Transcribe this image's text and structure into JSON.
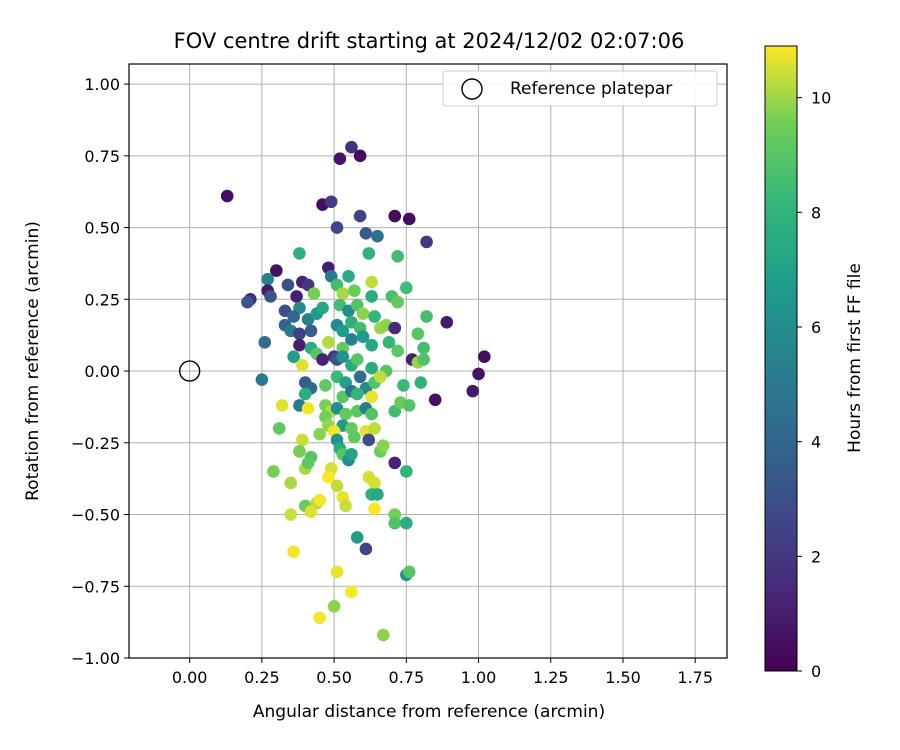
{
  "chart_data": {
    "type": "scatter",
    "title": "FOV centre drift starting at 2024/12/02 02:07:06",
    "xlabel": "Angular distance from reference (arcmin)",
    "ylabel": "Rotation from reference (arcmin)",
    "xlim": [
      -0.21,
      1.86
    ],
    "ylim": [
      -1.0,
      1.07
    ],
    "xticks": [
      0.0,
      0.25,
      0.5,
      0.75,
      1.0,
      1.25,
      1.5,
      1.75
    ],
    "xtick_labels": [
      "0.00",
      "0.25",
      "0.50",
      "0.75",
      "1.00",
      "1.25",
      "1.50",
      "1.75"
    ],
    "yticks": [
      -1.0,
      -0.75,
      -0.5,
      -0.25,
      0.0,
      0.25,
      0.5,
      0.75,
      1.0
    ],
    "ytick_labels": [
      "−1.00",
      "−0.75",
      "−0.50",
      "−0.25",
      "0.00",
      "0.25",
      "0.50",
      "0.75",
      "1.00"
    ],
    "grid": true,
    "legend": {
      "label": "Reference platepar",
      "placement": "upper-right"
    },
    "reference_point": {
      "x": 0.0,
      "y": 0.0
    },
    "colorbar": {
      "label": "Hours from first FF file",
      "colormap": "viridis",
      "range": [
        0,
        10.9
      ],
      "ticks": [
        0,
        2,
        4,
        6,
        8,
        10
      ],
      "tick_labels": [
        "0",
        "2",
        "4",
        "6",
        "8",
        "10"
      ]
    },
    "points": [
      {
        "x": 0.13,
        "y": 0.61,
        "h": 0.5
      },
      {
        "x": 0.52,
        "y": 0.74,
        "h": 0.6
      },
      {
        "x": 0.56,
        "y": 0.78,
        "h": 1.8
      },
      {
        "x": 0.59,
        "y": 0.75,
        "h": 0.4
      },
      {
        "x": 0.46,
        "y": 0.58,
        "h": 0.5
      },
      {
        "x": 0.49,
        "y": 0.59,
        "h": 2.2
      },
      {
        "x": 0.51,
        "y": 0.5,
        "h": 2.6
      },
      {
        "x": 0.59,
        "y": 0.54,
        "h": 2.5
      },
      {
        "x": 0.71,
        "y": 0.54,
        "h": 0.3
      },
      {
        "x": 0.76,
        "y": 0.53,
        "h": 0.4
      },
      {
        "x": 0.61,
        "y": 0.48,
        "h": 3.5
      },
      {
        "x": 0.65,
        "y": 0.47,
        "h": 4.5
      },
      {
        "x": 0.82,
        "y": 0.45,
        "h": 2.0
      },
      {
        "x": 0.38,
        "y": 0.41,
        "h": 7.8
      },
      {
        "x": 0.62,
        "y": 0.41,
        "h": 7.9
      },
      {
        "x": 0.72,
        "y": 0.4,
        "h": 8.5
      },
      {
        "x": 0.48,
        "y": 0.36,
        "h": 1.0
      },
      {
        "x": 0.3,
        "y": 0.35,
        "h": 0.6
      },
      {
        "x": 0.27,
        "y": 0.32,
        "h": 5.5
      },
      {
        "x": 0.34,
        "y": 0.3,
        "h": 3.0
      },
      {
        "x": 0.39,
        "y": 0.31,
        "h": 1.2
      },
      {
        "x": 0.41,
        "y": 0.3,
        "h": 2.0
      },
      {
        "x": 0.49,
        "y": 0.33,
        "h": 5.0
      },
      {
        "x": 0.55,
        "y": 0.33,
        "h": 7.5
      },
      {
        "x": 0.51,
        "y": 0.3,
        "h": 8.5
      },
      {
        "x": 0.63,
        "y": 0.31,
        "h": 10.3
      },
      {
        "x": 0.27,
        "y": 0.28,
        "h": 0.8
      },
      {
        "x": 0.28,
        "y": 0.26,
        "h": 3.2
      },
      {
        "x": 0.21,
        "y": 0.25,
        "h": 1.4
      },
      {
        "x": 0.2,
        "y": 0.24,
        "h": 3.3
      },
      {
        "x": 0.37,
        "y": 0.26,
        "h": 1.1
      },
      {
        "x": 0.38,
        "y": 0.22,
        "h": 6.0
      },
      {
        "x": 0.43,
        "y": 0.27,
        "h": 9.6
      },
      {
        "x": 0.53,
        "y": 0.27,
        "h": 10.1
      },
      {
        "x": 0.57,
        "y": 0.28,
        "h": 9.4
      },
      {
        "x": 0.63,
        "y": 0.26,
        "h": 7.5
      },
      {
        "x": 0.7,
        "y": 0.26,
        "h": 8.7
      },
      {
        "x": 0.72,
        "y": 0.24,
        "h": 9.3
      },
      {
        "x": 0.75,
        "y": 0.29,
        "h": 8.4
      },
      {
        "x": 0.33,
        "y": 0.21,
        "h": 2.9
      },
      {
        "x": 0.36,
        "y": 0.19,
        "h": 4.0
      },
      {
        "x": 0.41,
        "y": 0.18,
        "h": 5.3
      },
      {
        "x": 0.44,
        "y": 0.2,
        "h": 6.5
      },
      {
        "x": 0.46,
        "y": 0.22,
        "h": 7.3
      },
      {
        "x": 0.52,
        "y": 0.23,
        "h": 8.5
      },
      {
        "x": 0.55,
        "y": 0.21,
        "h": 6.0
      },
      {
        "x": 0.58,
        "y": 0.23,
        "h": 8.9
      },
      {
        "x": 0.6,
        "y": 0.2,
        "h": 9.8
      },
      {
        "x": 0.64,
        "y": 0.19,
        "h": 8.0
      },
      {
        "x": 0.82,
        "y": 0.19,
        "h": 8.6
      },
      {
        "x": 0.89,
        "y": 0.17,
        "h": 0.9
      },
      {
        "x": 0.33,
        "y": 0.16,
        "h": 3.8
      },
      {
        "x": 0.35,
        "y": 0.14,
        "h": 5.0
      },
      {
        "x": 0.38,
        "y": 0.13,
        "h": 2.4
      },
      {
        "x": 0.42,
        "y": 0.14,
        "h": 3.6
      },
      {
        "x": 0.51,
        "y": 0.16,
        "h": 5.8
      },
      {
        "x": 0.53,
        "y": 0.14,
        "h": 6.8
      },
      {
        "x": 0.56,
        "y": 0.17,
        "h": 7.8
      },
      {
        "x": 0.59,
        "y": 0.15,
        "h": 8.5
      },
      {
        "x": 0.66,
        "y": 0.15,
        "h": 10.0
      },
      {
        "x": 0.68,
        "y": 0.16,
        "h": 9.8
      },
      {
        "x": 0.71,
        "y": 0.15,
        "h": 1.5
      },
      {
        "x": 0.79,
        "y": 0.13,
        "h": 9.0
      },
      {
        "x": 0.26,
        "y": 0.1,
        "h": 4.3
      },
      {
        "x": 0.38,
        "y": 0.09,
        "h": 1.0
      },
      {
        "x": 0.42,
        "y": 0.08,
        "h": 7.5
      },
      {
        "x": 0.44,
        "y": 0.06,
        "h": 9.0
      },
      {
        "x": 0.48,
        "y": 0.1,
        "h": 10.2
      },
      {
        "x": 0.53,
        "y": 0.08,
        "h": 9.3
      },
      {
        "x": 0.56,
        "y": 0.11,
        "h": 5.4
      },
      {
        "x": 0.6,
        "y": 0.12,
        "h": 6.6
      },
      {
        "x": 0.63,
        "y": 0.09,
        "h": 7.3
      },
      {
        "x": 0.69,
        "y": 0.1,
        "h": 8.1
      },
      {
        "x": 0.72,
        "y": 0.07,
        "h": 9.1
      },
      {
        "x": 0.81,
        "y": 0.08,
        "h": 8.6
      },
      {
        "x": 0.36,
        "y": 0.05,
        "h": 6.9
      },
      {
        "x": 0.46,
        "y": 0.04,
        "h": 1.2
      },
      {
        "x": 0.5,
        "y": 0.05,
        "h": 1.8
      },
      {
        "x": 0.51,
        "y": 0.04,
        "h": 3.3
      },
      {
        "x": 0.53,
        "y": 0.05,
        "h": 6.3
      },
      {
        "x": 0.56,
        "y": 0.02,
        "h": 7.4
      },
      {
        "x": 0.58,
        "y": 0.04,
        "h": 9.0
      },
      {
        "x": 0.77,
        "y": 0.04,
        "h": 1.0
      },
      {
        "x": 0.79,
        "y": 0.03,
        "h": 9.9
      },
      {
        "x": 0.81,
        "y": 0.04,
        "h": 8.8
      },
      {
        "x": 1.02,
        "y": 0.05,
        "h": 0.5
      },
      {
        "x": 0.39,
        "y": 0.02,
        "h": 10.6
      },
      {
        "x": 0.63,
        "y": 0.01,
        "h": 7.5
      },
      {
        "x": 0.68,
        "y": 0.0,
        "h": 9.0
      },
      {
        "x": 1.0,
        "y": -0.01,
        "h": 0.6
      },
      {
        "x": 0.25,
        "y": -0.03,
        "h": 5.0
      },
      {
        "x": 0.4,
        "y": -0.04,
        "h": 3.5
      },
      {
        "x": 0.42,
        "y": -0.06,
        "h": 4.1
      },
      {
        "x": 0.47,
        "y": -0.05,
        "h": 9.2
      },
      {
        "x": 0.51,
        "y": -0.02,
        "h": 8.3
      },
      {
        "x": 0.54,
        "y": -0.04,
        "h": 7.0
      },
      {
        "x": 0.59,
        "y": -0.02,
        "h": 4.4
      },
      {
        "x": 0.61,
        "y": -0.06,
        "h": 6.0
      },
      {
        "x": 0.64,
        "y": -0.04,
        "h": 8.8
      },
      {
        "x": 0.66,
        "y": -0.02,
        "h": 10.3
      },
      {
        "x": 0.74,
        "y": -0.05,
        "h": 8.3
      },
      {
        "x": 0.8,
        "y": -0.04,
        "h": 7.9
      },
      {
        "x": 0.98,
        "y": -0.07,
        "h": 0.8
      },
      {
        "x": 0.4,
        "y": -0.08,
        "h": 7.7
      },
      {
        "x": 0.53,
        "y": -0.09,
        "h": 9.0
      },
      {
        "x": 0.56,
        "y": -0.07,
        "h": 4.4
      },
      {
        "x": 0.58,
        "y": -0.08,
        "h": 8.0
      },
      {
        "x": 0.63,
        "y": -0.09,
        "h": 10.7
      },
      {
        "x": 0.85,
        "y": -0.1,
        "h": 0.6
      },
      {
        "x": 0.32,
        "y": -0.12,
        "h": 10.6
      },
      {
        "x": 0.38,
        "y": -0.12,
        "h": 5.0
      },
      {
        "x": 0.41,
        "y": -0.13,
        "h": 10.8
      },
      {
        "x": 0.47,
        "y": -0.12,
        "h": 9.6
      },
      {
        "x": 0.49,
        "y": -0.14,
        "h": 10.2
      },
      {
        "x": 0.51,
        "y": -0.13,
        "h": 6.2
      },
      {
        "x": 0.54,
        "y": -0.15,
        "h": 9.3
      },
      {
        "x": 0.58,
        "y": -0.14,
        "h": 9.0
      },
      {
        "x": 0.61,
        "y": -0.13,
        "h": 5.3
      },
      {
        "x": 0.63,
        "y": -0.15,
        "h": 8.9
      },
      {
        "x": 0.71,
        "y": -0.14,
        "h": 8.5
      },
      {
        "x": 0.73,
        "y": -0.11,
        "h": 9.4
      },
      {
        "x": 0.76,
        "y": -0.12,
        "h": 8.9
      },
      {
        "x": 0.47,
        "y": -0.16,
        "h": 9.5
      },
      {
        "x": 0.31,
        "y": -0.2,
        "h": 9.2
      },
      {
        "x": 0.48,
        "y": -0.19,
        "h": 9.9
      },
      {
        "x": 0.53,
        "y": -0.19,
        "h": 6.6
      },
      {
        "x": 0.56,
        "y": -0.2,
        "h": 9.3
      },
      {
        "x": 0.61,
        "y": -0.21,
        "h": 10.6
      },
      {
        "x": 0.64,
        "y": -0.2,
        "h": 10.3
      },
      {
        "x": 0.39,
        "y": -0.24,
        "h": 10.4
      },
      {
        "x": 0.45,
        "y": -0.22,
        "h": 9.8
      },
      {
        "x": 0.5,
        "y": -0.21,
        "h": 10.8
      },
      {
        "x": 0.51,
        "y": -0.24,
        "h": 6.2
      },
      {
        "x": 0.57,
        "y": -0.23,
        "h": 9.1
      },
      {
        "x": 0.62,
        "y": -0.24,
        "h": 2.8
      },
      {
        "x": 0.52,
        "y": -0.27,
        "h": 7.5
      },
      {
        "x": 0.53,
        "y": -0.29,
        "h": 9.0
      },
      {
        "x": 0.38,
        "y": -0.28,
        "h": 9.6
      },
      {
        "x": 0.55,
        "y": -0.31,
        "h": 6.0
      },
      {
        "x": 0.56,
        "y": -0.29,
        "h": 7.2
      },
      {
        "x": 0.42,
        "y": -0.3,
        "h": 9.0
      },
      {
        "x": 0.66,
        "y": -0.28,
        "h": 9.5
      },
      {
        "x": 0.67,
        "y": -0.26,
        "h": 9.8
      },
      {
        "x": 0.29,
        "y": -0.35,
        "h": 9.6
      },
      {
        "x": 0.4,
        "y": -0.34,
        "h": 10.1
      },
      {
        "x": 0.41,
        "y": -0.32,
        "h": 9.2
      },
      {
        "x": 0.49,
        "y": -0.34,
        "h": 10.5
      },
      {
        "x": 0.48,
        "y": -0.37,
        "h": 10.9
      },
      {
        "x": 0.62,
        "y": -0.37,
        "h": 10.5
      },
      {
        "x": 0.71,
        "y": -0.32,
        "h": 1.2
      },
      {
        "x": 0.75,
        "y": -0.35,
        "h": 8.0
      },
      {
        "x": 0.35,
        "y": -0.39,
        "h": 10.1
      },
      {
        "x": 0.51,
        "y": -0.4,
        "h": 10.3
      },
      {
        "x": 0.64,
        "y": -0.39,
        "h": 10.5
      },
      {
        "x": 0.63,
        "y": -0.43,
        "h": 7.8
      },
      {
        "x": 0.65,
        "y": -0.43,
        "h": 7.4
      },
      {
        "x": 0.53,
        "y": -0.44,
        "h": 10.7
      },
      {
        "x": 0.4,
        "y": -0.47,
        "h": 9.4
      },
      {
        "x": 0.44,
        "y": -0.46,
        "h": 10.2
      },
      {
        "x": 0.45,
        "y": -0.45,
        "h": 10.8
      },
      {
        "x": 0.54,
        "y": -0.47,
        "h": 10.4
      },
      {
        "x": 0.64,
        "y": -0.48,
        "h": 10.9
      },
      {
        "x": 0.42,
        "y": -0.49,
        "h": 10.6
      },
      {
        "x": 0.35,
        "y": -0.5,
        "h": 10.4
      },
      {
        "x": 0.71,
        "y": -0.5,
        "h": 9.6
      },
      {
        "x": 0.71,
        "y": -0.53,
        "h": 8.8
      },
      {
        "x": 0.75,
        "y": -0.53,
        "h": 7.6
      },
      {
        "x": 0.58,
        "y": -0.58,
        "h": 6.8
      },
      {
        "x": 0.61,
        "y": -0.62,
        "h": 2.5
      },
      {
        "x": 0.36,
        "y": -0.63,
        "h": 10.8
      },
      {
        "x": 0.75,
        "y": -0.71,
        "h": 6.2
      },
      {
        "x": 0.76,
        "y": -0.7,
        "h": 9.0
      },
      {
        "x": 0.51,
        "y": -0.7,
        "h": 10.7
      },
      {
        "x": 0.56,
        "y": -0.77,
        "h": 10.9
      },
      {
        "x": 0.5,
        "y": -0.82,
        "h": 9.8
      },
      {
        "x": 0.45,
        "y": -0.86,
        "h": 10.8
      },
      {
        "x": 0.67,
        "y": -0.92,
        "h": 9.8
      }
    ]
  }
}
